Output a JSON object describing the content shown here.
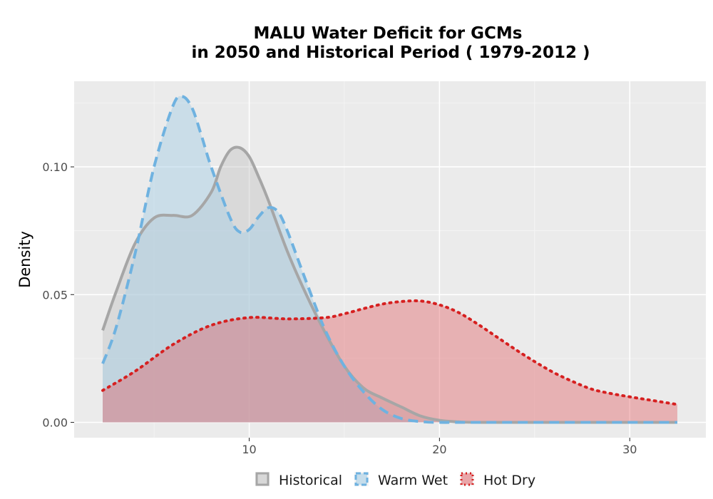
{
  "chart_data": {
    "type": "area",
    "title": "MALU  Water Deficit for GCMs",
    "subtitle": "in 2050 and Historical Period ( 1979-2012 )",
    "xlabel": "",
    "ylabel": "Density",
    "xlim": [
      0.8,
      34.0
    ],
    "ylim": [
      -0.006,
      0.1335
    ],
    "x_ticks": [
      {
        "value": 10,
        "label": "10"
      },
      {
        "value": 20,
        "label": "20"
      },
      {
        "value": 30,
        "label": "30"
      }
    ],
    "y_ticks": [
      {
        "value": 0.0,
        "label": "0.00"
      },
      {
        "value": 0.05,
        "label": "0.05"
      },
      {
        "value": 0.1,
        "label": "0.10"
      }
    ],
    "grid": true,
    "legend_position": "bottom",
    "series": [
      {
        "name": "Historical",
        "line_style": "solid",
        "line_color": "#a6a6a6",
        "fill_color": "#bdbdbd",
        "fill_opacity": 0.4,
        "x": [
          2.3,
          3.0,
          4.0,
          5.0,
          6.0,
          7.0,
          8.0,
          8.5,
          9.0,
          9.5,
          10.0,
          10.5,
          11.0,
          12.0,
          13.0,
          14.0,
          15.0,
          16.0,
          17.0,
          18.0,
          19.0,
          20.0,
          21.0,
          22.0,
          25.0,
          30.0,
          32.5
        ],
        "y": [
          0.036,
          0.051,
          0.07,
          0.08,
          0.081,
          0.081,
          0.09,
          0.1,
          0.1065,
          0.1075,
          0.104,
          0.096,
          0.087,
          0.067,
          0.05,
          0.035,
          0.022,
          0.0135,
          0.0095,
          0.006,
          0.0025,
          0.0008,
          0.0002,
          0.0,
          0.0,
          0.0,
          0.0
        ]
      },
      {
        "name": "Warm Wet",
        "line_style": "dashed",
        "line_color": "#6fb2e0",
        "fill_color": "#a9cfe6",
        "fill_opacity": 0.5,
        "x": [
          2.3,
          3.0,
          4.0,
          5.0,
          6.0,
          6.5,
          7.0,
          7.5,
          8.0,
          9.0,
          9.5,
          10.0,
          10.5,
          11.0,
          11.5,
          12.0,
          13.0,
          14.0,
          15.0,
          16.0,
          17.0,
          18.0,
          19.0,
          20.0,
          21.0,
          22.0,
          25.0,
          30.0,
          32.5
        ],
        "y": [
          0.023,
          0.037,
          0.066,
          0.1,
          0.124,
          0.1275,
          0.123,
          0.112,
          0.1,
          0.08,
          0.0745,
          0.0755,
          0.0805,
          0.084,
          0.0825,
          0.075,
          0.055,
          0.036,
          0.022,
          0.012,
          0.005,
          0.0015,
          0.0003,
          0.0,
          0.0,
          0.0,
          0.0,
          0.0,
          0.0
        ]
      },
      {
        "name": "Hot Dry",
        "line_style": "dotted",
        "line_color": "#d62020",
        "fill_color": "#e05a5f",
        "fill_opacity": 0.4,
        "x": [
          2.3,
          4.0,
          6.0,
          8.0,
          10.0,
          12.0,
          14.0,
          15.0,
          16.0,
          17.0,
          18.0,
          19.0,
          20.0,
          21.0,
          22.0,
          23.0,
          24.0,
          25.0,
          26.0,
          27.0,
          28.0,
          29.0,
          30.0,
          31.0,
          32.5
        ],
        "y": [
          0.0125,
          0.02,
          0.0305,
          0.038,
          0.041,
          0.0405,
          0.041,
          0.0425,
          0.0445,
          0.0463,
          0.0473,
          0.0475,
          0.046,
          0.043,
          0.0385,
          0.0335,
          0.0285,
          0.0238,
          0.0195,
          0.016,
          0.013,
          0.0113,
          0.01,
          0.0088,
          0.007
        ]
      }
    ]
  }
}
